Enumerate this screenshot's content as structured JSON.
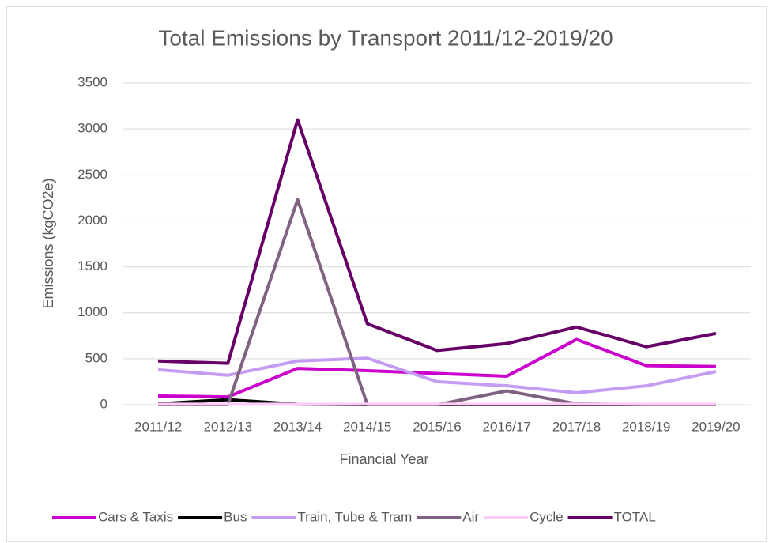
{
  "chart_data": {
    "type": "line",
    "title": "Total Emissions by Transport 2011/12-2019/20",
    "x_label": "Financial Year",
    "y_label": "Emissions (kgCO2e)",
    "categories": [
      "2011/12",
      "2012/13",
      "2013/14",
      "2014/15",
      "2015/16",
      "2016/17",
      "2017/18",
      "2018/19",
      "2019/20"
    ],
    "series": [
      {
        "name": "Cars & Taxis",
        "color": "#cc00cc",
        "values": [
          95,
          85,
          395,
          370,
          340,
          310,
          710,
          425,
          415
        ]
      },
      {
        "name": "Bus",
        "color": "#000000",
        "values": [
          10,
          55,
          5,
          0,
          0,
          0,
          0,
          0,
          0
        ]
      },
      {
        "name": "Train, Tube & Tram",
        "color": "#c49cf2",
        "values": [
          380,
          320,
          475,
          505,
          250,
          205,
          130,
          205,
          360
        ]
      },
      {
        "name": "Air",
        "color": "#7f6282",
        "values": [
          0,
          0,
          2230,
          0,
          0,
          150,
          10,
          0,
          0
        ]
      },
      {
        "name": "Cycle",
        "color": "#ffccf7",
        "values": [
          5,
          5,
          5,
          5,
          5,
          5,
          5,
          5,
          5
        ]
      },
      {
        "name": "TOTAL",
        "color": "#660066",
        "values": [
          475,
          450,
          3100,
          880,
          590,
          665,
          845,
          630,
          775
        ]
      }
    ],
    "ylim": [
      0,
      3500
    ],
    "yticks": [
      0,
      500,
      1000,
      1500,
      2000,
      2500,
      3000,
      3500
    ],
    "grid": true,
    "legend": "bottom"
  }
}
